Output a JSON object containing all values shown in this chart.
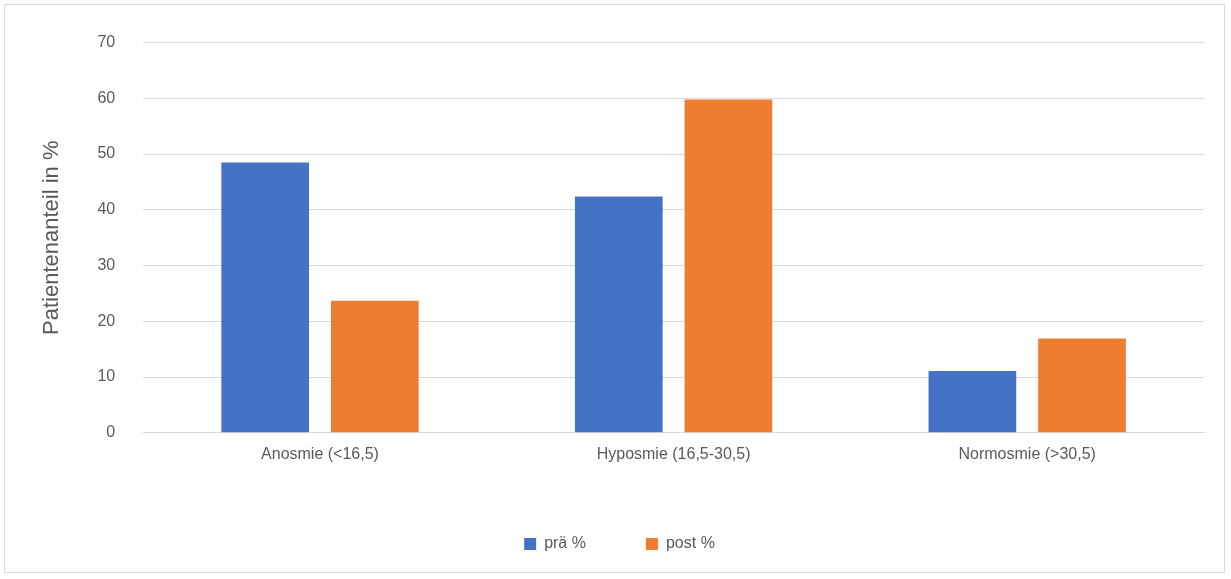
{
  "chart_data": {
    "type": "bar",
    "ylabel": "Patientenanteil in %",
    "categories": [
      "Anosmie (<16,5)",
      "Hyposmie (16,5-30,5)",
      "Normosmie (>30,5)"
    ],
    "series": [
      {
        "name": "prä %",
        "color": "#4472c4",
        "values": [
          48.5,
          42.4,
          11.1
        ]
      },
      {
        "name": "post %",
        "color": "#ed7d31",
        "values": [
          23.7,
          59.8,
          16.9
        ]
      }
    ],
    "ylim": [
      0,
      70
    ],
    "yticks": [
      0,
      10,
      20,
      30,
      40,
      50,
      60,
      70
    ],
    "grid": "y",
    "legend": "bottom"
  }
}
